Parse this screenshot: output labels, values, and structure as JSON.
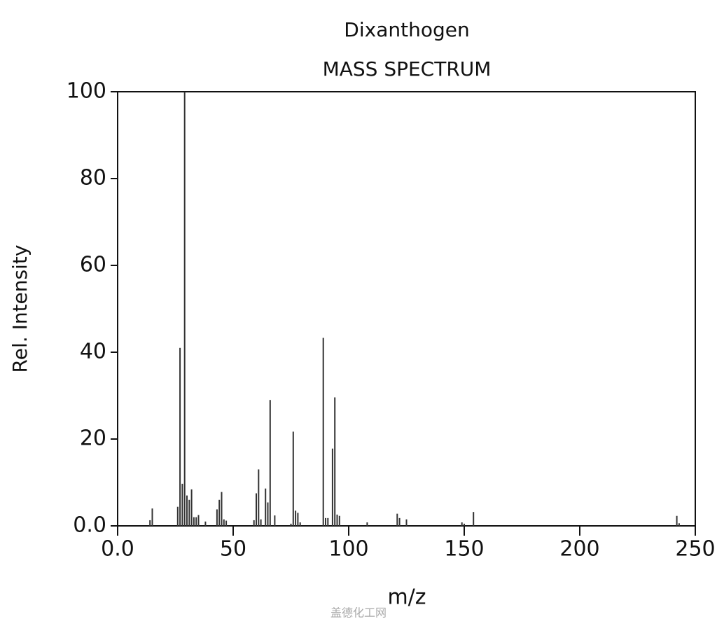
{
  "chart_data": {
    "type": "bar",
    "title": "Dixanthogen",
    "subtitle": "MASS SPECTRUM",
    "x_label": "m/z",
    "y_label": "Rel. Intensity",
    "watermark": "盖德化工网",
    "color": "#333333",
    "x": [
      14,
      15,
      26,
      27,
      28,
      29,
      30,
      31,
      32,
      33,
      34,
      35,
      38,
      43,
      44,
      45,
      46,
      47,
      59,
      60,
      61,
      62,
      64,
      65,
      66,
      68,
      75,
      76,
      77,
      78,
      79,
      89,
      90,
      91,
      93,
      94,
      95,
      96,
      108,
      121,
      122,
      125,
      149,
      150,
      154,
      242,
      243
    ],
    "values": [
      1.3,
      4,
      4.4,
      41,
      9.7,
      100,
      7,
      6,
      8.4,
      2,
      2,
      2.5,
      1,
      3.8,
      6,
      7.8,
      1.5,
      1.2,
      1.3,
      7.5,
      13,
      1.5,
      8.6,
      5.4,
      29,
      2.4,
      0.5,
      21.7,
      3.5,
      3,
      0.8,
      43.3,
      1.8,
      1.8,
      17.8,
      29.6,
      2.6,
      2.3,
      0.8,
      2.8,
      1.8,
      1.5,
      0.8,
      0.5,
      3.2,
      2.3,
      0.6
    ],
    "xlim": [
      0,
      250
    ],
    "ylim": [
      0,
      100
    ],
    "xticks": [
      {
        "value": 0,
        "label": "0.0"
      },
      50,
      100,
      150,
      200,
      250
    ],
    "yticks": [
      {
        "value": 0,
        "label": "0.0"
      },
      20,
      40,
      60,
      80,
      100
    ],
    "grid": false
  }
}
